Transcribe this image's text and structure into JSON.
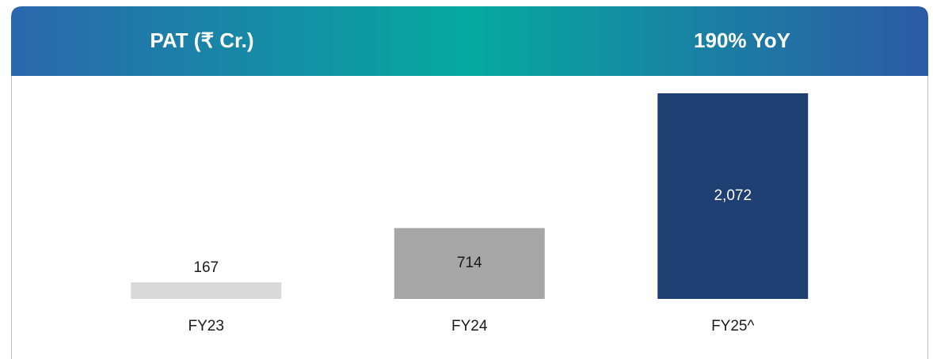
{
  "chart_data": {
    "type": "bar",
    "title": "PAT (₹ Cr.)",
    "annotation": "190% YoY",
    "categories": [
      "FY23",
      "FY24",
      "FY25^"
    ],
    "values": [
      167,
      714,
      2072
    ],
    "value_labels": [
      "167",
      "714",
      "2,072"
    ],
    "colors": [
      "#d9d9d9",
      "#a6a6a6",
      "#1f3f73"
    ]
  }
}
